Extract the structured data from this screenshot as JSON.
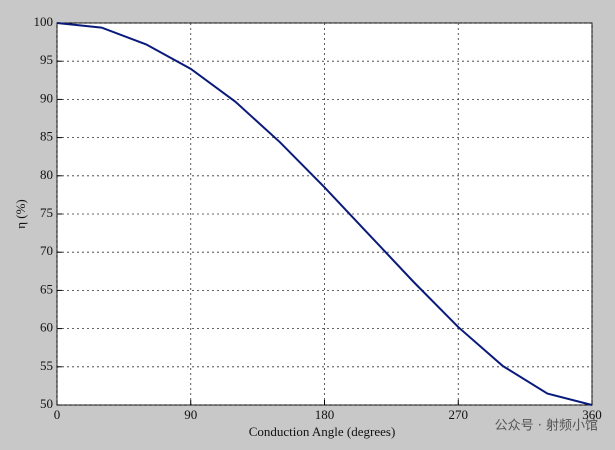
{
  "chart_data": {
    "type": "line",
    "xlabel": "Conduction Angle (degrees)",
    "ylabel": "η (%)",
    "x": [
      0,
      30,
      60,
      90,
      120,
      150,
      180,
      210,
      240,
      270,
      300,
      330,
      360
    ],
    "series": [
      {
        "name": "η",
        "color": "#0a1a7a",
        "values": [
          100,
          99.4,
          97.2,
          94.0,
          89.7,
          84.4,
          78.5,
          72.3,
          66.1,
          60.2,
          55.1,
          51.5,
          50
        ]
      }
    ],
    "xlim": [
      0,
      360
    ],
    "xticks": [
      0,
      90,
      180,
      270,
      360
    ],
    "ylim": [
      50,
      100
    ],
    "yticks": [
      50,
      55,
      60,
      65,
      70,
      75,
      80,
      85,
      90,
      95,
      100
    ],
    "grid": true,
    "watermark": "公众号 · 射频小馆"
  }
}
